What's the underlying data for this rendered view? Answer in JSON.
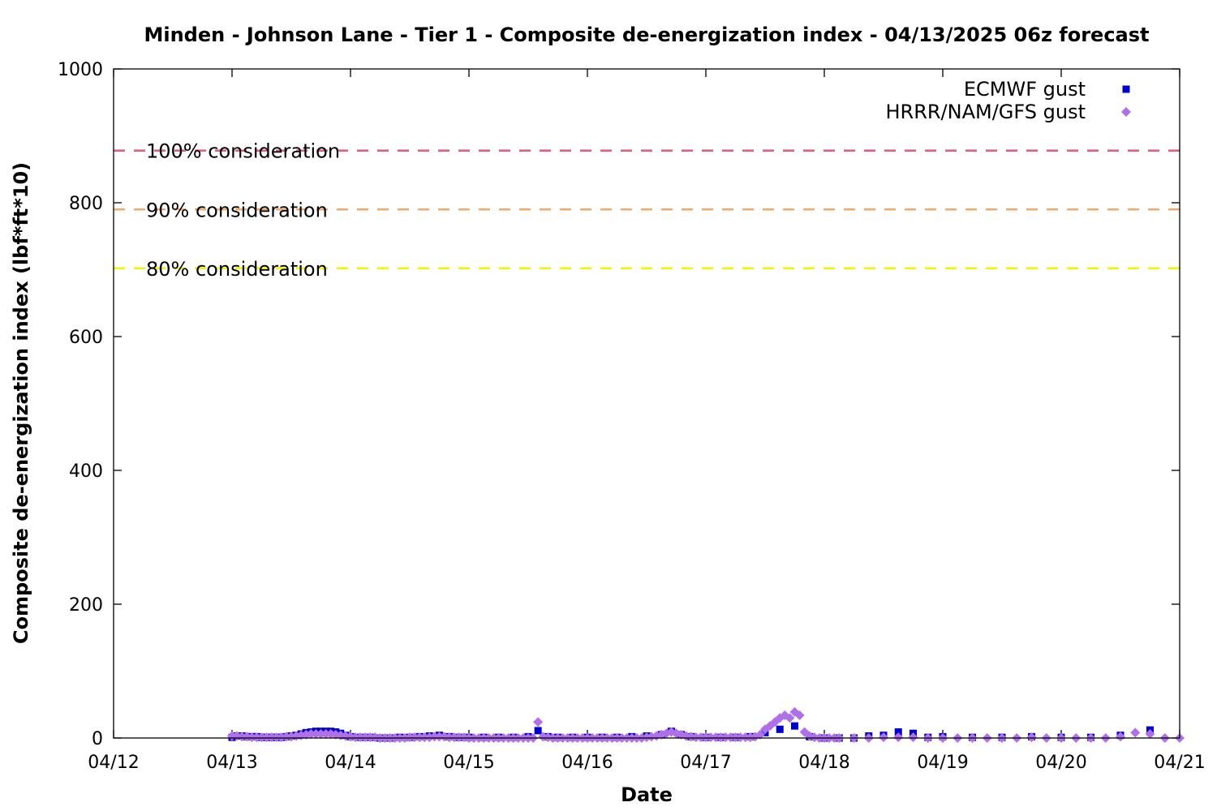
{
  "chart_data": {
    "type": "scatter",
    "title": "Minden - Johnson Lane - Tier 1 - Composite de-energization index - 04/13/2025 06z forecast",
    "xlabel": "Date",
    "ylabel": "Composite de-energization index (lbf*ft*10)",
    "xlim": [
      "04/12 00z",
      "04/21 00z"
    ],
    "ylim": [
      0,
      1000
    ],
    "x_tick_labels": [
      "04/12",
      "04/13",
      "04/14",
      "04/15",
      "04/16",
      "04/17",
      "04/18",
      "04/19",
      "04/20",
      "04/21"
    ],
    "y_tick_labels": [
      "0",
      "200",
      "400",
      "600",
      "800",
      "1000"
    ],
    "y_ticks": [
      0,
      200,
      400,
      600,
      800,
      1000
    ],
    "grid": false,
    "legend_position": "top-right",
    "reference_lines": [
      {
        "label": "100% consideration",
        "value": 878,
        "color": "#e0607e",
        "style": "dashed"
      },
      {
        "label": "90% consideration",
        "value": 790,
        "color": "#f4a968",
        "style": "dashed"
      },
      {
        "label": "80% consideration",
        "value": 702,
        "color": "#f2f20a",
        "style": "dashed"
      }
    ],
    "series": [
      {
        "name": "ECMWF gust",
        "marker": "square",
        "color": "#0000cc",
        "points": [
          [
            "04/13 00z",
            1
          ],
          [
            "04/13 01z",
            3
          ],
          [
            "04/13 02z",
            3
          ],
          [
            "04/13 03z",
            2
          ],
          [
            "04/13 04z",
            2
          ],
          [
            "04/13 05z",
            2
          ],
          [
            "04/13 06z",
            1
          ],
          [
            "04/13 07z",
            1
          ],
          [
            "04/13 08z",
            1
          ],
          [
            "04/13 09z",
            1
          ],
          [
            "04/13 10z",
            1
          ],
          [
            "04/13 11z",
            2
          ],
          [
            "04/13 12z",
            3
          ],
          [
            "04/13 13z",
            4
          ],
          [
            "04/13 14z",
            6
          ],
          [
            "04/13 15z",
            8
          ],
          [
            "04/13 16z",
            9
          ],
          [
            "04/13 17z",
            10
          ],
          [
            "04/13 18z",
            10
          ],
          [
            "04/13 19z",
            10
          ],
          [
            "04/13 20z",
            10
          ],
          [
            "04/13 21z",
            9
          ],
          [
            "04/13 22z",
            7
          ],
          [
            "04/13 23z",
            4
          ],
          [
            "04/14 00z",
            2
          ],
          [
            "04/14 02z",
            1
          ],
          [
            "04/14 04z",
            1
          ],
          [
            "04/14 06z",
            0
          ],
          [
            "04/14 08z",
            0
          ],
          [
            "04/14 10z",
            1
          ],
          [
            "04/14 12z",
            1
          ],
          [
            "04/14 14z",
            2
          ],
          [
            "04/14 16z",
            3
          ],
          [
            "04/14 18z",
            4
          ],
          [
            "04/14 20z",
            2
          ],
          [
            "04/14 22z",
            1
          ],
          [
            "04/15 00z",
            1
          ],
          [
            "04/15 03z",
            1
          ],
          [
            "04/15 06z",
            1
          ],
          [
            "04/15 09z",
            1
          ],
          [
            "04/15 12z",
            2
          ],
          [
            "04/15 14z",
            11
          ],
          [
            "04/15 16z",
            2
          ],
          [
            "04/15 18z",
            1
          ],
          [
            "04/15 21z",
            1
          ],
          [
            "04/16 00z",
            1
          ],
          [
            "04/16 03z",
            1
          ],
          [
            "04/16 06z",
            1
          ],
          [
            "04/16 09z",
            2
          ],
          [
            "04/16 12z",
            3
          ],
          [
            "04/16 15z",
            5
          ],
          [
            "04/16 17z",
            10
          ],
          [
            "04/16 19z",
            5
          ],
          [
            "04/16 21z",
            2
          ],
          [
            "04/17 00z",
            1
          ],
          [
            "04/17 03z",
            1
          ],
          [
            "04/17 06z",
            1
          ],
          [
            "04/17 09z",
            2
          ],
          [
            "04/17 12z",
            8
          ],
          [
            "04/17 15z",
            13
          ],
          [
            "04/17 18z",
            18
          ],
          [
            "04/17 21z",
            2
          ],
          [
            "04/18 00z",
            0
          ],
          [
            "04/18 03z",
            0
          ],
          [
            "04/18 06z",
            0
          ],
          [
            "04/18 09z",
            3
          ],
          [
            "04/18 12z",
            4
          ],
          [
            "04/18 15z",
            9
          ],
          [
            "04/18 18z",
            7
          ],
          [
            "04/18 21z",
            1
          ],
          [
            "04/19 00z",
            2
          ],
          [
            "04/19 06z",
            1
          ],
          [
            "04/19 12z",
            1
          ],
          [
            "04/19 18z",
            2
          ],
          [
            "04/20 00z",
            1
          ],
          [
            "04/20 06z",
            1
          ],
          [
            "04/20 12z",
            4
          ],
          [
            "04/20 18z",
            12
          ]
        ]
      },
      {
        "name": "HRRR/NAM/GFS gust",
        "marker": "diamond",
        "color": "#b070e8",
        "points": [
          [
            "04/13 00z",
            3
          ],
          [
            "04/13 01z",
            3
          ],
          [
            "04/13 02z",
            2
          ],
          [
            "04/13 03z",
            2
          ],
          [
            "04/13 04z",
            1
          ],
          [
            "04/13 05z",
            1
          ],
          [
            "04/13 06z",
            1
          ],
          [
            "04/13 07z",
            1
          ],
          [
            "04/13 08z",
            1
          ],
          [
            "04/13 09z",
            1
          ],
          [
            "04/13 10z",
            1
          ],
          [
            "04/13 11z",
            2
          ],
          [
            "04/13 12z",
            2
          ],
          [
            "04/13 13z",
            3
          ],
          [
            "04/13 14z",
            4
          ],
          [
            "04/13 15z",
            5
          ],
          [
            "04/13 16z",
            6
          ],
          [
            "04/13 17z",
            6
          ],
          [
            "04/13 18z",
            6
          ],
          [
            "04/13 19z",
            6
          ],
          [
            "04/13 20z",
            6
          ],
          [
            "04/13 21z",
            5
          ],
          [
            "04/13 22z",
            4
          ],
          [
            "04/13 23z",
            3
          ],
          [
            "04/14 00z",
            2
          ],
          [
            "04/14 01z",
            1
          ],
          [
            "04/14 02z",
            1
          ],
          [
            "04/14 03z",
            1
          ],
          [
            "04/14 04z",
            1
          ],
          [
            "04/14 05z",
            1
          ],
          [
            "04/14 06z",
            0
          ],
          [
            "04/14 07z",
            0
          ],
          [
            "04/14 08z",
            0
          ],
          [
            "04/14 09z",
            0
          ],
          [
            "04/14 10z",
            0
          ],
          [
            "04/14 11z",
            0
          ],
          [
            "04/14 12z",
            1
          ],
          [
            "04/14 13z",
            1
          ],
          [
            "04/14 14z",
            1
          ],
          [
            "04/14 15z",
            1
          ],
          [
            "04/14 16z",
            1
          ],
          [
            "04/14 17z",
            2
          ],
          [
            "04/14 18z",
            2
          ],
          [
            "04/14 19z",
            2
          ],
          [
            "04/14 20z",
            1
          ],
          [
            "04/14 21z",
            1
          ],
          [
            "04/14 22z",
            1
          ],
          [
            "04/14 23z",
            1
          ],
          [
            "04/15 00z",
            0
          ],
          [
            "04/15 01z",
            0
          ],
          [
            "04/15 02z",
            0
          ],
          [
            "04/15 03z",
            0
          ],
          [
            "04/15 04z",
            0
          ],
          [
            "04/15 05z",
            0
          ],
          [
            "04/15 06z",
            0
          ],
          [
            "04/15 07z",
            0
          ],
          [
            "04/15 08z",
            0
          ],
          [
            "04/15 09z",
            0
          ],
          [
            "04/15 10z",
            0
          ],
          [
            "04/15 11z",
            0
          ],
          [
            "04/15 12z",
            0
          ],
          [
            "04/15 13z",
            0
          ],
          [
            "04/15 14z",
            24
          ],
          [
            "04/15 15z",
            2
          ],
          [
            "04/15 16z",
            1
          ],
          [
            "04/15 17z",
            0
          ],
          [
            "04/15 18z",
            0
          ],
          [
            "04/15 19z",
            0
          ],
          [
            "04/15 20z",
            0
          ],
          [
            "04/15 21z",
            0
          ],
          [
            "04/15 22z",
            0
          ],
          [
            "04/15 23z",
            0
          ],
          [
            "04/16 00z",
            0
          ],
          [
            "04/16 01z",
            0
          ],
          [
            "04/16 02z",
            0
          ],
          [
            "04/16 03z",
            0
          ],
          [
            "04/16 04z",
            0
          ],
          [
            "04/16 05z",
            0
          ],
          [
            "04/16 06z",
            0
          ],
          [
            "04/16 07z",
            0
          ],
          [
            "04/16 08z",
            0
          ],
          [
            "04/16 09z",
            0
          ],
          [
            "04/16 10z",
            0
          ],
          [
            "04/16 11z",
            0
          ],
          [
            "04/16 12z",
            1
          ],
          [
            "04/16 13z",
            2
          ],
          [
            "04/16 14z",
            3
          ],
          [
            "04/16 15z",
            5
          ],
          [
            "04/16 16z",
            7
          ],
          [
            "04/16 17z",
            9
          ],
          [
            "04/16 18z",
            7
          ],
          [
            "04/16 19z",
            5
          ],
          [
            "04/16 20z",
            3
          ],
          [
            "04/16 21z",
            2
          ],
          [
            "04/16 22z",
            1
          ],
          [
            "04/16 23z",
            1
          ],
          [
            "04/17 00z",
            1
          ],
          [
            "04/17 01z",
            1
          ],
          [
            "04/17 02z",
            1
          ],
          [
            "04/17 03z",
            1
          ],
          [
            "04/17 04z",
            1
          ],
          [
            "04/17 05z",
            1
          ],
          [
            "04/17 06z",
            1
          ],
          [
            "04/17 07z",
            1
          ],
          [
            "04/17 08z",
            1
          ],
          [
            "04/17 09z",
            1
          ],
          [
            "04/17 10z",
            2
          ],
          [
            "04/17 11z",
            5
          ],
          [
            "04/17 12z",
            13
          ],
          [
            "04/17 13z",
            18
          ],
          [
            "04/17 14z",
            24
          ],
          [
            "04/17 15z",
            30
          ],
          [
            "04/17 16z",
            34
          ],
          [
            "04/17 17z",
            30
          ],
          [
            "04/17 18z",
            39
          ],
          [
            "04/17 19z",
            34
          ],
          [
            "04/17 20z",
            9
          ],
          [
            "04/17 21z",
            3
          ],
          [
            "04/17 22z",
            1
          ],
          [
            "04/17 23z",
            0
          ],
          [
            "04/18 00z",
            0
          ],
          [
            "04/18 01z",
            0
          ],
          [
            "04/18 02z",
            0
          ],
          [
            "04/18 03z",
            0
          ],
          [
            "04/18 06z",
            0
          ],
          [
            "04/18 09z",
            0
          ],
          [
            "04/18 12z",
            1
          ],
          [
            "04/18 15z",
            1
          ],
          [
            "04/18 18z",
            1
          ],
          [
            "04/18 21z",
            0
          ],
          [
            "04/19 00z",
            0
          ],
          [
            "04/19 03z",
            0
          ],
          [
            "04/19 06z",
            0
          ],
          [
            "04/19 09z",
            0
          ],
          [
            "04/19 12z",
            0
          ],
          [
            "04/19 15z",
            0
          ],
          [
            "04/19 18z",
            1
          ],
          [
            "04/19 21z",
            0
          ],
          [
            "04/20 00z",
            0
          ],
          [
            "04/20 03z",
            0
          ],
          [
            "04/20 06z",
            0
          ],
          [
            "04/20 09z",
            0
          ],
          [
            "04/20 12z",
            2
          ],
          [
            "04/20 15z",
            8
          ],
          [
            "04/20 18z",
            6
          ],
          [
            "04/20 21z",
            0
          ],
          [
            "04/21 00z",
            0
          ]
        ]
      }
    ]
  }
}
